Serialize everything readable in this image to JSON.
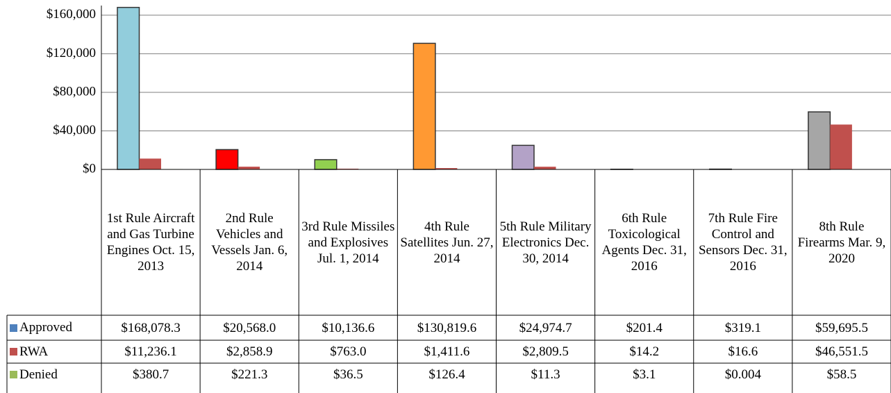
{
  "chart_data": {
    "type": "bar",
    "categories": [
      "1st Rule Aircraft and Gas Turbine Engines Oct. 15, 2013",
      "2nd Rule Vehicles and Vessels Jan. 6, 2014",
      "3rd Rule Missiles and Explosives Jul. 1, 2014",
      "4th Rule Satellites Jun. 27, 2014",
      "5th Rule Military Electronics Dec. 30, 2014",
      "6th Rule Toxicological Agents Dec. 31, 2016",
      "7th Rule Fire Control and Sensors Dec. 31, 2016",
      "8th Rule Firearms Mar. 9, 2020"
    ],
    "series": [
      {
        "name": "Approved",
        "color": "#4f81bd",
        "bar_colors": [
          "#92cddc",
          "#ff0000",
          "#92d050",
          "#ff9933",
          "#b3a2c7",
          "#4f81bd",
          "#4f81bd",
          "#a6a6a6"
        ],
        "values": [
          168078.3,
          20568.0,
          10136.6,
          130819.6,
          24974.7,
          201.4,
          319.1,
          59695.5
        ],
        "value_labels": [
          "$168,078.3",
          "$20,568.0",
          "$10,136.6",
          "$130,819.6",
          "$24,974.7",
          "$201.4",
          "$319.1",
          "$59,695.5"
        ]
      },
      {
        "name": "RWA",
        "color": "#c0504d",
        "values": [
          11236.1,
          2858.9,
          763.0,
          1411.6,
          2809.5,
          14.2,
          16.6,
          46551.5
        ],
        "value_labels": [
          "$11,236.1",
          "$2,858.9",
          "$763.0",
          "$1,411.6",
          "$2,809.5",
          "$14.2",
          "$16.6",
          "$46,551.5"
        ]
      },
      {
        "name": "Denied",
        "color": "#9bbb59",
        "values": [
          380.7,
          221.3,
          36.5,
          126.4,
          11.3,
          3.1,
          0.004,
          58.5
        ],
        "value_labels": [
          "$380.7",
          "$221.3",
          "$36.5",
          "$126.4",
          "$11.3",
          "$3.1",
          "$0.004",
          "$58.5"
        ]
      }
    ],
    "ylim": [
      0,
      170000
    ],
    "yticks": [
      {
        "value": 0,
        "label": "$0"
      },
      {
        "value": 40000,
        "label": "$40,000"
      },
      {
        "value": 80000,
        "label": "$80,000"
      },
      {
        "value": 120000,
        "label": "$120,000"
      },
      {
        "value": 160000,
        "label": "$160,000"
      }
    ],
    "grid": true
  }
}
